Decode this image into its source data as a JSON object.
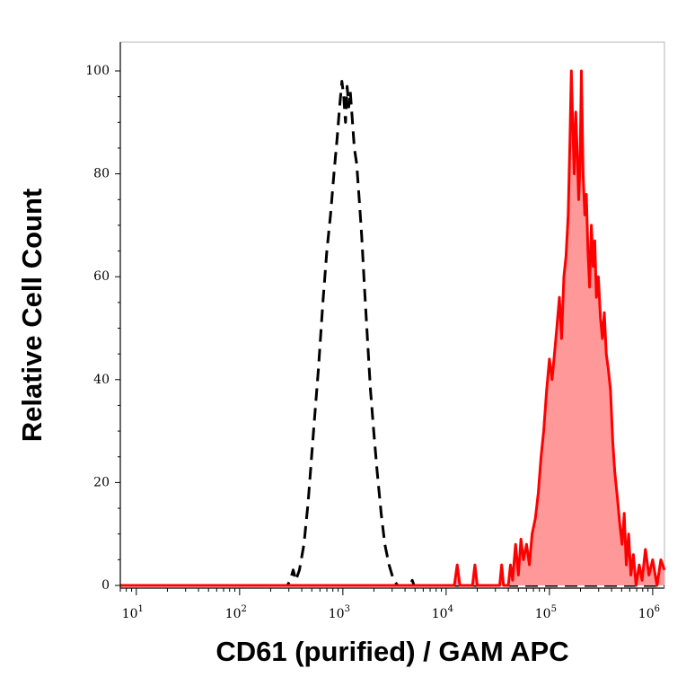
{
  "chart_data": {
    "type": "area",
    "title": "",
    "xlabel": "CD61 (purified) / GAM APC",
    "ylabel": "Relative Cell Count",
    "x_scale": "log",
    "xlim": [
      7,
      1300000
    ],
    "ylim": [
      0,
      100
    ],
    "grid": false,
    "legend": "none",
    "x_ticks": [
      {
        "base": "10",
        "exp": "1",
        "value": 10
      },
      {
        "base": "10",
        "exp": "2",
        "value": 100
      },
      {
        "base": "10",
        "exp": "3",
        "value": 1000
      },
      {
        "base": "10",
        "exp": "4",
        "value": 10000
      },
      {
        "base": "10",
        "exp": "5",
        "value": 100000
      },
      {
        "base": "10",
        "exp": "6",
        "value": 1000000
      }
    ],
    "y_ticks": [
      {
        "label": "0",
        "value": 0
      },
      {
        "label": "20",
        "value": 20
      },
      {
        "label": "40",
        "value": 40
      },
      {
        "label": "60",
        "value": 60
      },
      {
        "label": "80",
        "value": 80
      },
      {
        "label": "100",
        "value": 100
      }
    ],
    "series": [
      {
        "style": "dashed",
        "color": "#000000",
        "fill": "none",
        "points": [
          [
            7,
            0
          ],
          [
            290,
            0
          ],
          [
            310,
            1
          ],
          [
            330,
            3
          ],
          [
            350,
            1
          ],
          [
            380,
            3
          ],
          [
            420,
            8
          ],
          [
            460,
            16
          ],
          [
            520,
            30
          ],
          [
            580,
            42
          ],
          [
            640,
            55
          ],
          [
            700,
            65
          ],
          [
            760,
            72
          ],
          [
            820,
            80
          ],
          [
            880,
            87
          ],
          [
            930,
            93
          ],
          [
            980,
            98
          ],
          [
            1020,
            95
          ],
          [
            1060,
            90
          ],
          [
            1100,
            97
          ],
          [
            1140,
            93
          ],
          [
            1180,
            96
          ],
          [
            1230,
            91
          ],
          [
            1290,
            85
          ],
          [
            1360,
            82
          ],
          [
            1440,
            75
          ],
          [
            1520,
            68
          ],
          [
            1620,
            58
          ],
          [
            1730,
            48
          ],
          [
            1850,
            38
          ],
          [
            1990,
            30
          ],
          [
            2150,
            22
          ],
          [
            2350,
            14
          ],
          [
            2550,
            8
          ],
          [
            2800,
            4
          ],
          [
            3100,
            1
          ],
          [
            3400,
            0
          ],
          [
            4500,
            0
          ],
          [
            4700,
            1
          ],
          [
            4900,
            0
          ],
          [
            1300000,
            0
          ]
        ]
      },
      {
        "style": "solid",
        "color": "#ff0000",
        "fill": "#ff9999",
        "points": [
          [
            7,
            0
          ],
          [
            12000,
            0
          ],
          [
            12800,
            4
          ],
          [
            13600,
            0
          ],
          [
            18000,
            0
          ],
          [
            19000,
            4
          ],
          [
            20000,
            0
          ],
          [
            33000,
            0
          ],
          [
            34500,
            4
          ],
          [
            36000,
            0
          ],
          [
            40000,
            0
          ],
          [
            42000,
            4
          ],
          [
            44000,
            1
          ],
          [
            47000,
            8
          ],
          [
            50000,
            2
          ],
          [
            53000,
            9
          ],
          [
            56000,
            5
          ],
          [
            60000,
            8
          ],
          [
            64000,
            4
          ],
          [
            68000,
            10
          ],
          [
            73000,
            13
          ],
          [
            78000,
            18
          ],
          [
            83000,
            25
          ],
          [
            88000,
            30
          ],
          [
            94000,
            38
          ],
          [
            100000,
            44
          ],
          [
            106000,
            40
          ],
          [
            112000,
            45
          ],
          [
            118000,
            50
          ],
          [
            125000,
            56
          ],
          [
            131000,
            48
          ],
          [
            138000,
            60
          ],
          [
            145000,
            64
          ],
          [
            152000,
            72
          ],
          [
            158000,
            86
          ],
          [
            163000,
            100
          ],
          [
            168000,
            90
          ],
          [
            174000,
            80
          ],
          [
            180000,
            92
          ],
          [
            186000,
            84
          ],
          [
            192000,
            75
          ],
          [
            198000,
            82
          ],
          [
            204000,
            100
          ],
          [
            212000,
            80
          ],
          [
            220000,
            72
          ],
          [
            228000,
            76
          ],
          [
            236000,
            65
          ],
          [
            245000,
            58
          ],
          [
            255000,
            70
          ],
          [
            265000,
            62
          ],
          [
            275000,
            67
          ],
          [
            285000,
            56
          ],
          [
            298000,
            60
          ],
          [
            312000,
            52
          ],
          [
            326000,
            48
          ],
          [
            340000,
            53
          ],
          [
            355000,
            45
          ],
          [
            372000,
            42
          ],
          [
            390000,
            38
          ],
          [
            410000,
            28
          ],
          [
            430000,
            22
          ],
          [
            455000,
            17
          ],
          [
            480000,
            12
          ],
          [
            505000,
            8
          ],
          [
            530000,
            14
          ],
          [
            555000,
            4
          ],
          [
            585000,
            10
          ],
          [
            615000,
            2
          ],
          [
            650000,
            6
          ],
          [
            690000,
            0
          ],
          [
            740000,
            4
          ],
          [
            790000,
            1
          ],
          [
            850000,
            7
          ],
          [
            920000,
            2
          ],
          [
            1000000,
            5
          ],
          [
            1100000,
            0
          ],
          [
            1200000,
            5
          ],
          [
            1300000,
            3
          ]
        ]
      }
    ]
  }
}
